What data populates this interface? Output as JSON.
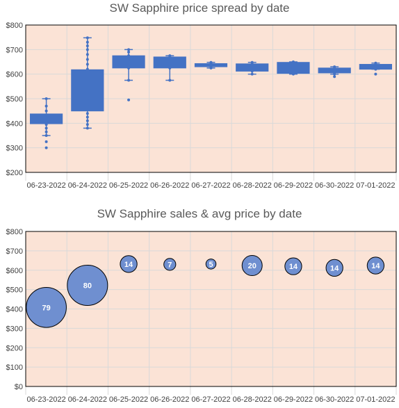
{
  "colors": {
    "plot_background": "#FBE3D6",
    "series": "#4472C4",
    "bubble_fill": "#6F8FD0",
    "gridline": "#D9D9D9",
    "axis_text": "#404040",
    "title_text": "#595959"
  },
  "chart_data": [
    {
      "type": "box",
      "title": "SW Sapphire price spread by date",
      "xlabel": "",
      "ylabel": "",
      "ylim": [
        200,
        800
      ],
      "y_ticks": [
        "$200",
        "$300",
        "$400",
        "$500",
        "$600",
        "$700",
        "$800"
      ],
      "y_tick_values": [
        200,
        300,
        400,
        500,
        600,
        700,
        800
      ],
      "grid": true,
      "categories": [
        "06-23-2022",
        "06-24-2022",
        "06-25-2022",
        "06-26-2022",
        "06-27-2022",
        "06-28-2022",
        "06-29-2022",
        "06-30-2022",
        "07-01-2022"
      ],
      "boxes": [
        {
          "category": "06-23-2022",
          "min": 350,
          "q1": 398,
          "median": 415,
          "q3": 438,
          "max": 500,
          "points": [
            300,
            325,
            350,
            365,
            380,
            395,
            410,
            420,
            430,
            450,
            470,
            500
          ]
        },
        {
          "category": "06-24-2022",
          "min": 380,
          "q1": 450,
          "median": 505,
          "q3": 618,
          "max": 748,
          "points": [
            380,
            395,
            410,
            425,
            440,
            455,
            470,
            485,
            500,
            515,
            530,
            560,
            590,
            620,
            640,
            660,
            680,
            700,
            715,
            730,
            748
          ]
        },
        {
          "category": "06-25-2022",
          "min": 575,
          "q1": 625,
          "median": 650,
          "q3": 675,
          "max": 700,
          "points": [
            495,
            575,
            625,
            650,
            675,
            690,
            700
          ]
        },
        {
          "category": "06-26-2022",
          "min": 575,
          "q1": 625,
          "median": 648,
          "q3": 670,
          "max": 675,
          "points": [
            575,
            625,
            648,
            670,
            675
          ]
        },
        {
          "category": "06-27-2022",
          "min": 625,
          "q1": 630,
          "median": 637,
          "q3": 643,
          "max": 648,
          "points": [
            625,
            630,
            637,
            643,
            648
          ]
        },
        {
          "category": "06-28-2022",
          "min": 600,
          "q1": 612,
          "median": 628,
          "q3": 642,
          "max": 648,
          "points": [
            600,
            612,
            628,
            642,
            648
          ]
        },
        {
          "category": "06-29-2022",
          "min": 600,
          "q1": 603,
          "median": 625,
          "q3": 648,
          "max": 650,
          "points": [
            600,
            605,
            625,
            645,
            650
          ]
        },
        {
          "category": "06-30-2022",
          "min": 600,
          "q1": 605,
          "median": 615,
          "q3": 625,
          "max": 630,
          "points": [
            590,
            600,
            605,
            615,
            625,
            630
          ]
        },
        {
          "category": "07-01-2022",
          "min": 620,
          "q1": 620,
          "median": 630,
          "q3": 640,
          "max": 645,
          "points": [
            600,
            620,
            630,
            640,
            645
          ]
        }
      ]
    },
    {
      "type": "bubble",
      "title": "SW Sapphire sales & avg price by date",
      "xlabel": "",
      "ylabel": "",
      "ylim": [
        0,
        800
      ],
      "y_ticks": [
        "$0",
        "$100",
        "$200",
        "$300",
        "$400",
        "$500",
        "$600",
        "$700",
        "$800"
      ],
      "y_tick_values": [
        0,
        100,
        200,
        300,
        400,
        500,
        600,
        700,
        800
      ],
      "grid": true,
      "categories": [
        "06-23-2022",
        "06-24-2022",
        "06-25-2022",
        "06-26-2022",
        "06-27-2022",
        "06-28-2022",
        "06-29-2022",
        "06-30-2022",
        "07-01-2022"
      ],
      "points": [
        {
          "x": "06-23-2022",
          "y": 408,
          "size": 79,
          "label": "79"
        },
        {
          "x": "06-24-2022",
          "y": 522,
          "size": 80,
          "label": "80"
        },
        {
          "x": "06-25-2022",
          "y": 632,
          "size": 14,
          "label": "14"
        },
        {
          "x": "06-26-2022",
          "y": 630,
          "size": 7,
          "label": "7"
        },
        {
          "x": "06-27-2022",
          "y": 632,
          "size": 5,
          "label": "5"
        },
        {
          "x": "06-28-2022",
          "y": 624,
          "size": 20,
          "label": "20"
        },
        {
          "x": "06-29-2022",
          "y": 620,
          "size": 14,
          "label": "14"
        },
        {
          "x": "06-30-2022",
          "y": 612,
          "size": 14,
          "label": "14"
        },
        {
          "x": "07-01-2022",
          "y": 624,
          "size": 14,
          "label": "14"
        }
      ]
    }
  ]
}
